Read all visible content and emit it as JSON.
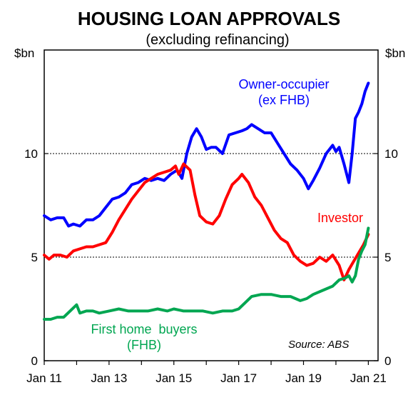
{
  "chart_data": {
    "type": "line",
    "title": "HOUSING LOAN APPROVALS",
    "subtitle": "(excluding refinancing)",
    "unit_left": "$bn",
    "unit_right": "$bn",
    "source": "Source: ABS",
    "xlim": [
      2011.0,
      2021.3
    ],
    "ylim": [
      0,
      15
    ],
    "yticks": [
      0,
      5,
      10
    ],
    "ytick_labels": [
      "0",
      "5",
      "10"
    ],
    "gridlines_y": [
      5,
      10
    ],
    "xticks": [
      2011.0,
      2013.0,
      2015.0,
      2017.0,
      2019.0,
      2021.0
    ],
    "xtick_labels": [
      "Jan 11",
      "Jan 13",
      "Jan 15",
      "Jan 17",
      "Jan 19",
      "Jan 21"
    ],
    "series": [
      {
        "name": "Owner-occupier (ex FHB)",
        "label_lines": [
          "Owner-occupier",
          "(ex FHB)"
        ],
        "color": "#0000ff",
        "x": [
          2011.0,
          2011.2,
          2011.4,
          2011.6,
          2011.75,
          2011.9,
          2012.1,
          2012.3,
          2012.5,
          2012.7,
          2012.9,
          2013.1,
          2013.3,
          2013.5,
          2013.7,
          2013.9,
          2014.1,
          2014.3,
          2014.5,
          2014.7,
          2014.9,
          2015.1,
          2015.25,
          2015.4,
          2015.55,
          2015.7,
          2015.85,
          2016.0,
          2016.15,
          2016.3,
          2016.5,
          2016.7,
          2016.9,
          2017.1,
          2017.25,
          2017.4,
          2017.6,
          2017.8,
          2018.0,
          2018.2,
          2018.4,
          2018.6,
          2018.8,
          2019.0,
          2019.15,
          2019.3,
          2019.5,
          2019.7,
          2019.9,
          2020.0,
          2020.1,
          2020.25,
          2020.4,
          2020.5,
          2020.6,
          2020.7,
          2020.8,
          2020.9,
          2021.0
        ],
        "y": [
          7.0,
          6.8,
          6.9,
          6.9,
          6.5,
          6.6,
          6.5,
          6.8,
          6.8,
          7.0,
          7.4,
          7.8,
          7.9,
          8.1,
          8.5,
          8.6,
          8.8,
          8.7,
          8.8,
          8.7,
          9.0,
          9.2,
          8.8,
          10.0,
          10.8,
          11.2,
          10.8,
          10.2,
          10.3,
          10.3,
          10.0,
          10.9,
          11.0,
          11.1,
          11.2,
          11.4,
          11.2,
          11.0,
          11.0,
          10.5,
          10.0,
          9.5,
          9.2,
          8.8,
          8.3,
          8.7,
          9.3,
          10.0,
          10.4,
          10.1,
          10.3,
          9.5,
          8.6,
          10.0,
          11.7,
          12.0,
          12.4,
          13.0,
          13.4
        ]
      },
      {
        "name": "Investor",
        "label_lines": [
          "Investor"
        ],
        "color": "#ff0000",
        "x": [
          2011.0,
          2011.15,
          2011.3,
          2011.5,
          2011.7,
          2011.9,
          2012.1,
          2012.3,
          2012.5,
          2012.7,
          2012.9,
          2013.1,
          2013.3,
          2013.5,
          2013.7,
          2013.9,
          2014.1,
          2014.3,
          2014.5,
          2014.7,
          2014.9,
          2015.05,
          2015.15,
          2015.3,
          2015.5,
          2015.65,
          2015.8,
          2016.0,
          2016.2,
          2016.4,
          2016.6,
          2016.8,
          2017.0,
          2017.1,
          2017.3,
          2017.5,
          2017.7,
          2017.9,
          2018.1,
          2018.3,
          2018.5,
          2018.7,
          2018.9,
          2019.1,
          2019.3,
          2019.5,
          2019.7,
          2019.9,
          2020.1,
          2020.25,
          2020.4,
          2020.55,
          2020.7,
          2020.85,
          2021.0
        ],
        "y": [
          5.1,
          4.9,
          5.1,
          5.1,
          5.0,
          5.3,
          5.4,
          5.5,
          5.5,
          5.6,
          5.7,
          6.2,
          6.8,
          7.3,
          7.8,
          8.2,
          8.6,
          8.8,
          9.0,
          9.1,
          9.2,
          9.4,
          9.0,
          9.5,
          9.2,
          8.0,
          7.0,
          6.7,
          6.6,
          7.0,
          7.8,
          8.5,
          8.8,
          9.0,
          8.6,
          7.9,
          7.5,
          6.9,
          6.3,
          5.9,
          5.7,
          5.1,
          4.8,
          4.6,
          4.7,
          5.0,
          4.8,
          5.1,
          4.6,
          3.9,
          4.4,
          4.8,
          5.2,
          5.6,
          6.1
        ]
      },
      {
        "name": "First home buyers (FHB)",
        "label_lines": [
          "First home  buyers",
          "(FHB)"
        ],
        "color": "#00a651",
        "x": [
          2011.0,
          2011.2,
          2011.4,
          2011.6,
          2011.8,
          2012.0,
          2012.1,
          2012.3,
          2012.5,
          2012.7,
          2013.0,
          2013.3,
          2013.6,
          2013.9,
          2014.2,
          2014.5,
          2014.8,
          2015.0,
          2015.3,
          2015.6,
          2015.9,
          2016.2,
          2016.5,
          2016.8,
          2017.0,
          2017.2,
          2017.4,
          2017.7,
          2018.0,
          2018.3,
          2018.6,
          2018.9,
          2019.1,
          2019.3,
          2019.6,
          2019.9,
          2020.1,
          2020.3,
          2020.4,
          2020.5,
          2020.6,
          2020.7,
          2020.8,
          2020.9,
          2021.0
        ],
        "y": [
          2.0,
          2.0,
          2.1,
          2.1,
          2.4,
          2.7,
          2.3,
          2.4,
          2.4,
          2.3,
          2.4,
          2.5,
          2.4,
          2.4,
          2.4,
          2.5,
          2.4,
          2.5,
          2.4,
          2.4,
          2.4,
          2.3,
          2.4,
          2.4,
          2.5,
          2.8,
          3.1,
          3.2,
          3.2,
          3.1,
          3.1,
          2.9,
          3.0,
          3.2,
          3.4,
          3.6,
          3.9,
          4.0,
          4.1,
          3.8,
          4.1,
          4.9,
          5.3,
          5.6,
          6.4
        ]
      }
    ]
  }
}
